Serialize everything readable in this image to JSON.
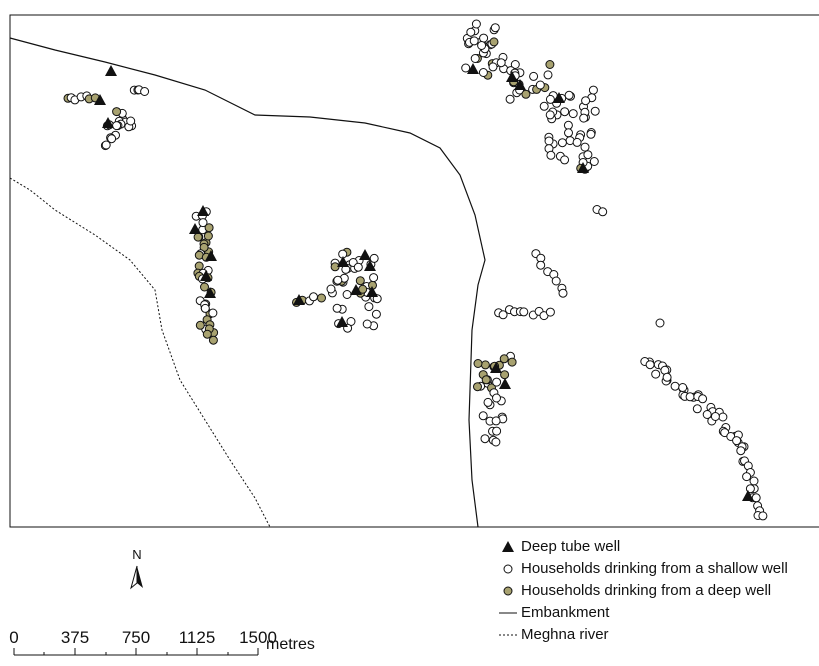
{
  "legend": {
    "items": [
      {
        "symbol": "triangle",
        "label": "Deep tube well",
        "color": "#111111"
      },
      {
        "symbol": "circle-open",
        "label": "Households drinking from a shallow well",
        "color": "#ffffff"
      },
      {
        "symbol": "circle-filled",
        "label": "Households drinking from a deep well",
        "color": "#a8a270"
      },
      {
        "symbol": "line-solid",
        "label": "Embankment",
        "color": "#111111"
      },
      {
        "symbol": "line-dotted",
        "label": "Meghna river",
        "color": "#111111"
      }
    ]
  },
  "north_arrow": {
    "label": "N"
  },
  "scale_bar": {
    "ticks": [
      "0",
      "375",
      "750",
      "1125",
      "1500"
    ],
    "unit": "metres"
  },
  "colors": {
    "deep_well_household": "#a8a270",
    "shallow_well_household": "#ffffff",
    "outline": "#111111"
  }
}
